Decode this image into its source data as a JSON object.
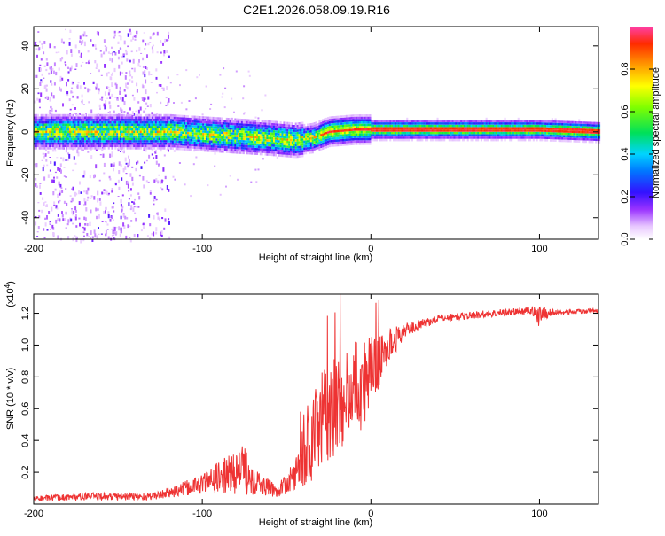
{
  "title": "C2E1.2026.058.09.19.R16",
  "chart_data": [
    {
      "type": "heatmap",
      "xlabel": "Height of straight line (km)",
      "ylabel": "Frequency (Hz)",
      "xlim": [
        -200,
        135
      ],
      "ylim": [
        -50,
        49
      ],
      "xticks": [
        -200,
        -100,
        0,
        100
      ],
      "yticks": [
        -40,
        -20,
        0,
        20,
        40
      ],
      "ridge": [
        {
          "x": -200,
          "f": 0
        },
        {
          "x": -150,
          "f": 0
        },
        {
          "x": -120,
          "f": 0
        },
        {
          "x": -100,
          "f": -1
        },
        {
          "x": -80,
          "f": -2
        },
        {
          "x": -60,
          "f": -3
        },
        {
          "x": -45,
          "f": -4
        },
        {
          "x": -35,
          "f": -3
        },
        {
          "x": -25,
          "f": 0
        },
        {
          "x": -10,
          "f": 1
        },
        {
          "x": 0,
          "f": 1
        },
        {
          "x": 20,
          "f": 1
        },
        {
          "x": 60,
          "f": 1
        },
        {
          "x": 90,
          "f": 1
        },
        {
          "x": 100,
          "f": 1
        },
        {
          "x": 135,
          "f": 0
        }
      ],
      "colorbar": {
        "label": "Normalized spectral amplitude",
        "ticks": [
          0.0,
          0.2,
          0.4,
          0.6,
          0.8
        ],
        "tick_labels": [
          "0.0",
          "0.2",
          "0.4",
          "0.6",
          "0.8"
        ],
        "range": [
          0,
          1
        ]
      }
    },
    {
      "type": "line",
      "xlabel": "Height of straight line (km)",
      "ylabel": "SNR (10 * v/v)",
      "yscale_label": "(x10",
      "yscale_exp": "4",
      "yscale_close": ")",
      "xlim": [
        -200,
        135
      ],
      "ylim": [
        0,
        1.32
      ],
      "xticks": [
        -200,
        -100,
        0,
        100
      ],
      "yticks": [
        0.2,
        0.4,
        0.6,
        0.8,
        1.0,
        1.2
      ],
      "ytick_labels": [
        "0.2",
        "0.4",
        "0.6",
        "0.8",
        "1.0",
        "1.2"
      ],
      "color": "#ee3333",
      "envelope": [
        {
          "x": -200,
          "base": 0.03,
          "amp": 0.02
        },
        {
          "x": -170,
          "base": 0.04,
          "amp": 0.03
        },
        {
          "x": -130,
          "base": 0.04,
          "amp": 0.03
        },
        {
          "x": -115,
          "base": 0.07,
          "amp": 0.05
        },
        {
          "x": -100,
          "base": 0.11,
          "amp": 0.08
        },
        {
          "x": -85,
          "base": 0.15,
          "amp": 0.15
        },
        {
          "x": -75,
          "base": 0.17,
          "amp": 0.2
        },
        {
          "x": -65,
          "base": 0.1,
          "amp": 0.08
        },
        {
          "x": -55,
          "base": 0.07,
          "amp": 0.05
        },
        {
          "x": -45,
          "base": 0.15,
          "amp": 0.12
        },
        {
          "x": -35,
          "base": 0.3,
          "amp": 0.35
        },
        {
          "x": -28,
          "base": 0.45,
          "amp": 0.4
        },
        {
          "x": -18,
          "base": 0.55,
          "amp": 0.35
        },
        {
          "x": -8,
          "base": 0.65,
          "amp": 0.4
        },
        {
          "x": 0,
          "base": 0.75,
          "amp": 0.3
        },
        {
          "x": 10,
          "base": 0.95,
          "amp": 0.15
        },
        {
          "x": 20,
          "base": 1.08,
          "amp": 0.05
        },
        {
          "x": 40,
          "base": 1.16,
          "amp": 0.03
        },
        {
          "x": 70,
          "base": 1.19,
          "amp": 0.03
        },
        {
          "x": 95,
          "base": 1.21,
          "amp": 0.03
        },
        {
          "x": 100,
          "base": 1.18,
          "amp": 0.07
        },
        {
          "x": 110,
          "base": 1.2,
          "amp": 0.02
        },
        {
          "x": 135,
          "base": 1.21,
          "amp": 0.02
        }
      ]
    }
  ]
}
